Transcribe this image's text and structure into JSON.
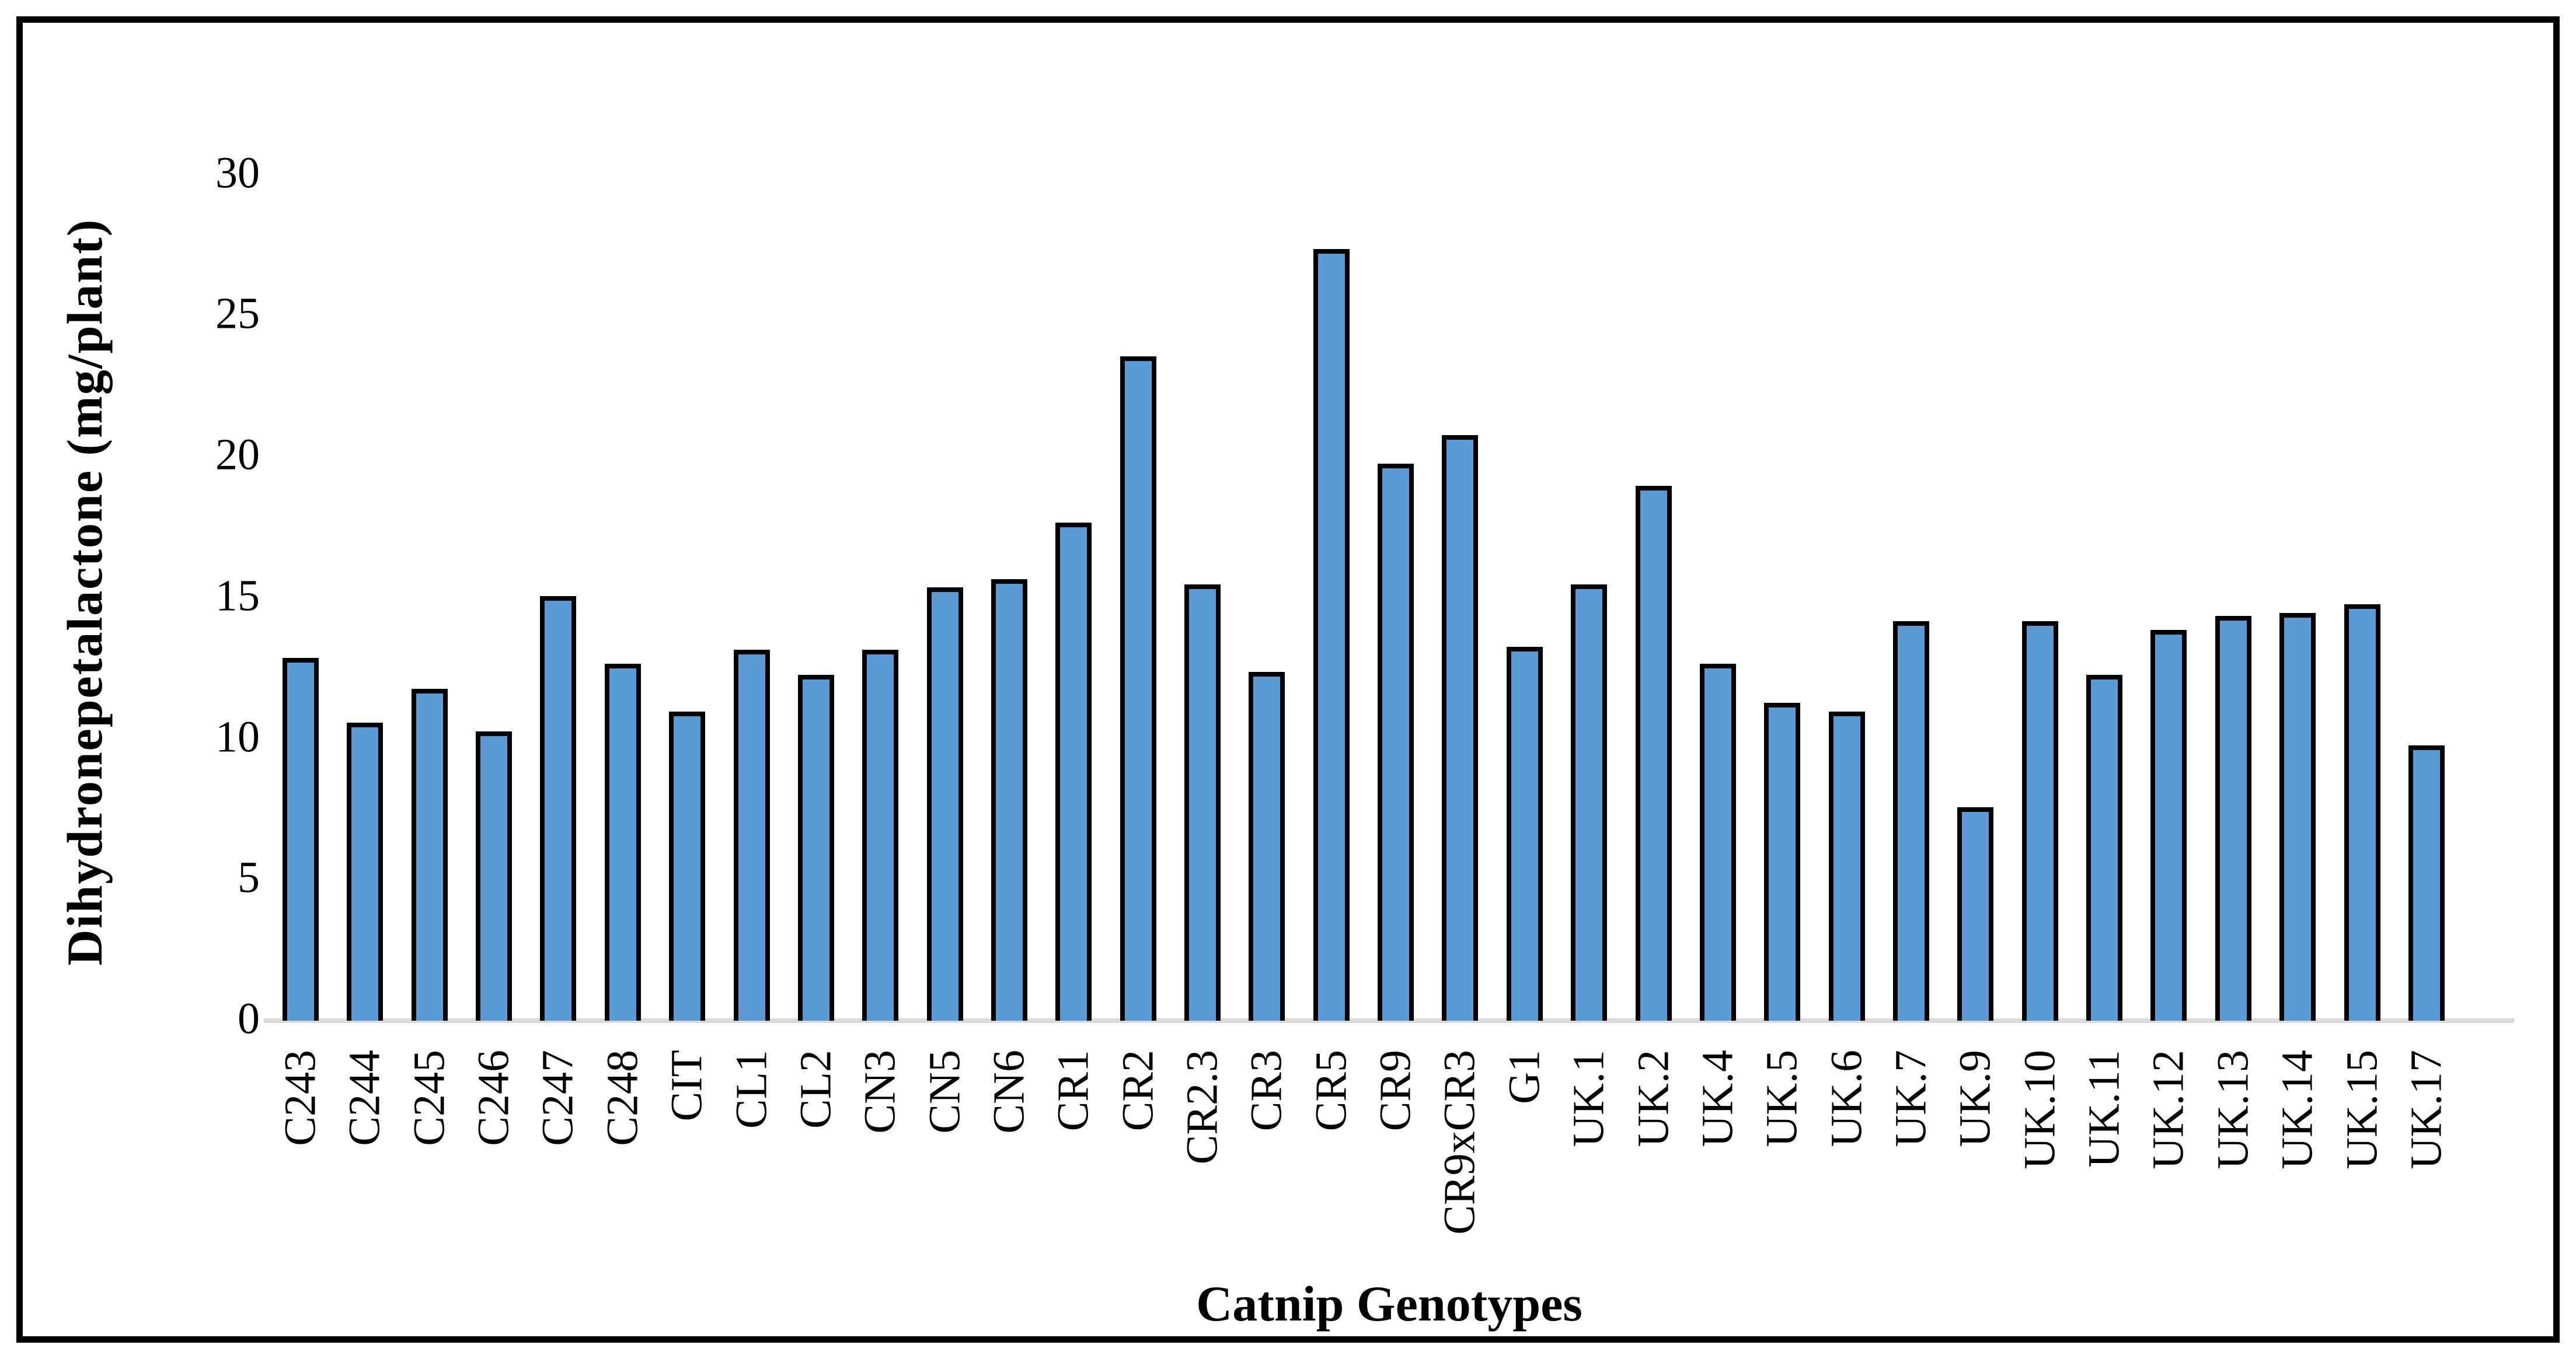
{
  "figure": {
    "background_color": "#FFFFFF",
    "border_color": "#000000",
    "text_color": "#000000"
  },
  "chart_data": {
    "type": "bar",
    "title": "",
    "xlabel": "Catnip Genotypes",
    "ylabel": "Dihydronepetalactone (mg/plant)",
    "categories": [
      "C243",
      "C244",
      "C245",
      "C246",
      "C247",
      "C248",
      "CIT",
      "CL1",
      "CL2",
      "CN3",
      "CN5",
      "CN6",
      "CR1",
      "CR2",
      "CR2.3",
      "CR3",
      "CR5",
      "CR9",
      "CR9xCR3",
      "G1",
      "UK.1",
      "UK.2",
      "UK.4",
      "UK.5",
      "UK.6",
      "UK.7",
      "UK.9",
      "UK.10",
      "UK.11",
      "UK.12",
      "UK.13",
      "UK.14",
      "UK.15",
      "UK.17"
    ],
    "values": [
      12.8,
      10.5,
      11.7,
      10.2,
      15.0,
      12.6,
      10.9,
      13.1,
      12.2,
      13.1,
      15.3,
      15.6,
      17.6,
      23.5,
      15.4,
      12.3,
      27.3,
      19.7,
      20.7,
      13.2,
      15.4,
      18.9,
      12.6,
      11.2,
      10.9,
      14.1,
      7.5,
      14.1,
      12.2,
      13.8,
      14.3,
      14.4,
      14.7,
      9.7
    ],
    "yticks": [
      0,
      5,
      10,
      15,
      20,
      25,
      30
    ],
    "ylim": [
      0,
      30
    ],
    "grid": false,
    "legend": "none",
    "bar_color": "#5B9BD5",
    "bar_border_color": "#000000",
    "axis_line_color": "#D9D9D9"
  }
}
